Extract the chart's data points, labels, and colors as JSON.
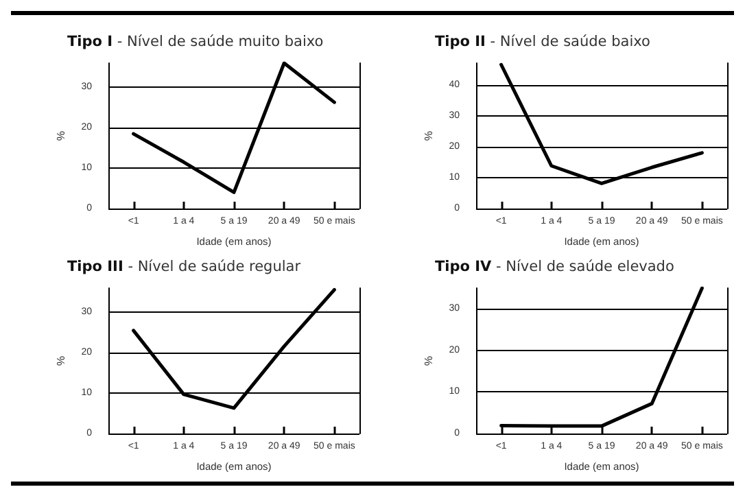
{
  "chart_data": [
    {
      "type": "line",
      "title": "Tipo I - Nível de saúde muito baixo",
      "xlabel": "Idade (em anos)",
      "ylabel": "%",
      "categories": [
        "<1",
        "1 a 4",
        "5 a 19",
        "20 a 49",
        "50 e mais"
      ],
      "series": [
        {
          "color": "#000000",
          "values": [
            18.5,
            11.5,
            4,
            36,
            26.3
          ]
        }
      ],
      "ylim": [
        0,
        36
      ],
      "yticks": [
        0,
        10,
        20,
        30
      ],
      "grid": "y",
      "marker": "none",
      "line_style": "solid"
    },
    {
      "type": "line",
      "title": "Tipo II - Nível de saúde baixo",
      "xlabel": "Idade (em anos)",
      "ylabel": "%",
      "categories": [
        "<1",
        "1 a 4",
        "5 a 19",
        "20 a 49",
        "50 e mais"
      ],
      "series": [
        {
          "color": "#000000",
          "values": [
            46.5,
            13.8,
            8.1,
            13.3,
            18
          ]
        }
      ],
      "ylim": [
        0,
        47
      ],
      "yticks": [
        0,
        10,
        20,
        30,
        40
      ],
      "grid": "y",
      "marker": "none",
      "line_style": "solid"
    },
    {
      "type": "line",
      "title": "Tipo III - Nível de saúde regular",
      "xlabel": "Idade (em anos)",
      "ylabel": "%",
      "categories": [
        "<1",
        "1 a 4",
        "5 a 19",
        "20 a 49",
        "50 e mais"
      ],
      "series": [
        {
          "color": "#000000",
          "values": [
            25.5,
            9.7,
            6.3,
            21.6,
            35.6
          ]
        }
      ],
      "ylim": [
        0,
        36
      ],
      "yticks": [
        0,
        10,
        20,
        30
      ],
      "grid": "y",
      "marker": "none",
      "line_style": "solid"
    },
    {
      "type": "line",
      "title": "Tipo IV - Nível de saúde elevado",
      "xlabel": "Idade (em anos)",
      "ylabel": "%",
      "categories": [
        "<1",
        "1 a 4",
        "5 a 19",
        "20 a 49",
        "50 e mais"
      ],
      "series": [
        {
          "color": "#000000",
          "values": [
            1.9,
            1.8,
            1.8,
            7.2,
            35
          ]
        }
      ],
      "ylim": [
        0,
        35
      ],
      "yticks": [
        0,
        10,
        20,
        30
      ],
      "grid": "y",
      "marker": "none",
      "line_style": "solid"
    }
  ]
}
